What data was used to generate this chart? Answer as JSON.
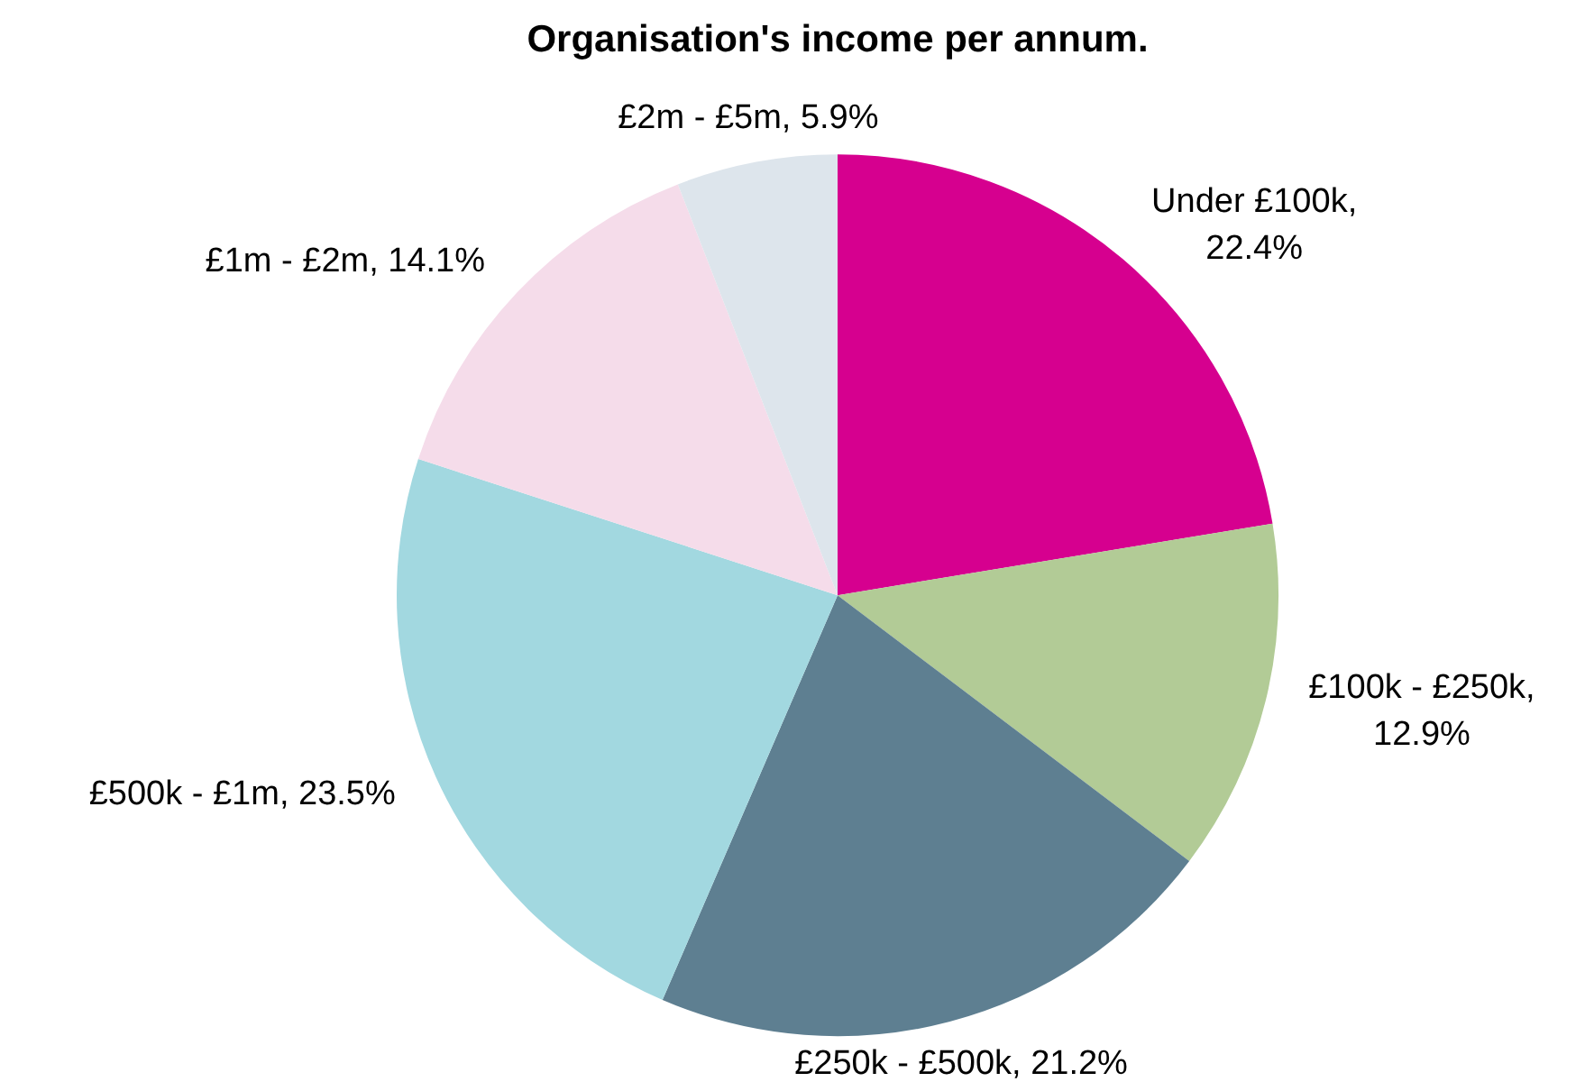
{
  "chart_data": {
    "type": "pie",
    "title": "Organisation's income per annum.",
    "categories": [
      "Under £100k",
      "£100k - £250k",
      "£250k - £500k",
      "£500k - £1m",
      "£1m - £2m",
      "£2m - £5m"
    ],
    "values": [
      22.4,
      12.9,
      21.2,
      23.5,
      14.1,
      5.9
    ],
    "colors": [
      "#d6008f",
      "#b2cb96",
      "#5e7f91",
      "#a2d8e0",
      "#f5dcea",
      "#dde5ec"
    ],
    "value_labels": [
      ", 22.4%",
      ", 12.9%",
      ", 21.2%",
      ", 23.5%",
      ", 14.1%",
      ", 5.9%"
    ],
    "legend": false
  }
}
